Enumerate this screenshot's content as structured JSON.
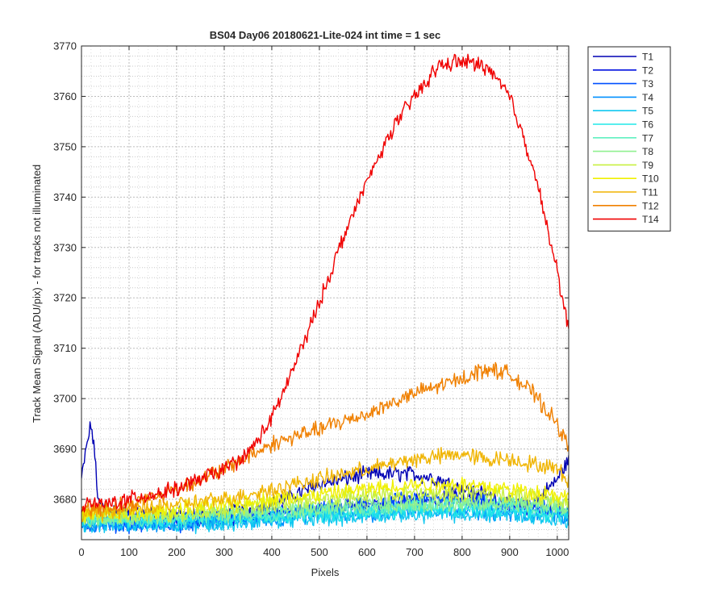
{
  "chart_data": {
    "type": "line",
    "title": "BS04 Day06 20180621-Lite-024 int time = 1 sec",
    "xlabel": "Pixels",
    "ylabel": "Track Mean Signal (ADU/pix) - for tracks not illuminated",
    "xlim": [
      0,
      1024
    ],
    "ylim": [
      3672,
      3770
    ],
    "x_ticks": [
      0,
      100,
      200,
      300,
      400,
      500,
      600,
      700,
      800,
      900,
      1000
    ],
    "y_ticks": [
      3680,
      3690,
      3700,
      3710,
      3720,
      3730,
      3740,
      3750,
      3760,
      3770
    ],
    "grid": true,
    "minor_grid": true,
    "legend_position": "outside-top-right",
    "series": [
      {
        "name": "T1",
        "color": "#0000b4",
        "x": [
          0,
          10,
          20,
          30,
          35,
          100,
          200,
          300,
          400,
          500,
          600,
          650,
          700,
          750,
          800,
          850,
          900,
          950,
          1000,
          1024
        ],
        "y": [
          3684,
          3690,
          3695,
          3687,
          3679,
          3677,
          3677,
          3677,
          3679,
          3683,
          3685,
          3685,
          3685,
          3684,
          3682,
          3681,
          3679,
          3679,
          3684,
          3688
        ]
      },
      {
        "name": "T2",
        "color": "#0010e0",
        "x": [
          0,
          100,
          200,
          300,
          400,
          500,
          600,
          700,
          800,
          900,
          1000,
          1024
        ],
        "y": [
          3676,
          3676,
          3676,
          3676,
          3677,
          3678,
          3679,
          3680,
          3680,
          3679,
          3678,
          3677
        ]
      },
      {
        "name": "T3",
        "color": "#0050ff",
        "x": [
          0,
          100,
          200,
          300,
          400,
          500,
          600,
          700,
          800,
          900,
          1000,
          1024
        ],
        "y": [
          3675,
          3675,
          3675,
          3676,
          3677,
          3678,
          3679,
          3680,
          3680,
          3679,
          3678,
          3677
        ]
      },
      {
        "name": "T4",
        "color": "#0090ff",
        "x": [
          0,
          100,
          200,
          300,
          400,
          500,
          600,
          700,
          800,
          900,
          1000,
          1024
        ],
        "y": [
          3675,
          3675,
          3675,
          3676,
          3676,
          3677,
          3677,
          3678,
          3678,
          3677,
          3677,
          3676
        ]
      },
      {
        "name": "T5",
        "color": "#10c8f0",
        "x": [
          0,
          100,
          200,
          300,
          400,
          500,
          600,
          700,
          800,
          900,
          1000,
          1024
        ],
        "y": [
          3675,
          3675,
          3675,
          3675,
          3676,
          3676,
          3677,
          3677,
          3677,
          3677,
          3676,
          3676
        ]
      },
      {
        "name": "T6",
        "color": "#20e8e8",
        "x": [
          0,
          100,
          200,
          300,
          400,
          500,
          600,
          700,
          800,
          900,
          1000,
          1024
        ],
        "y": [
          3676,
          3676,
          3676,
          3676,
          3677,
          3677,
          3677,
          3678,
          3678,
          3678,
          3677,
          3677
        ]
      },
      {
        "name": "T7",
        "color": "#60f0c0",
        "x": [
          0,
          100,
          200,
          300,
          400,
          500,
          600,
          700,
          800,
          900,
          1000,
          1024
        ],
        "y": [
          3676,
          3676,
          3676,
          3677,
          3677,
          3678,
          3678,
          3679,
          3679,
          3679,
          3678,
          3678
        ]
      },
      {
        "name": "T8",
        "color": "#90f090",
        "x": [
          0,
          100,
          200,
          300,
          400,
          500,
          600,
          700,
          800,
          900,
          1000,
          1024
        ],
        "y": [
          3676,
          3676,
          3677,
          3677,
          3678,
          3678,
          3679,
          3679,
          3679,
          3679,
          3679,
          3678
        ]
      },
      {
        "name": "T9",
        "color": "#c8f040",
        "x": [
          0,
          100,
          200,
          300,
          400,
          500,
          600,
          700,
          800,
          900,
          1000,
          1024
        ],
        "y": [
          3677,
          3677,
          3677,
          3678,
          3679,
          3680,
          3681,
          3681,
          3681,
          3681,
          3680,
          3679
        ]
      },
      {
        "name": "T10",
        "color": "#f0f000",
        "x": [
          0,
          100,
          200,
          300,
          400,
          500,
          600,
          700,
          800,
          900,
          1000,
          1024
        ],
        "y": [
          3677,
          3677,
          3678,
          3679,
          3680,
          3681,
          3682,
          3683,
          3683,
          3682,
          3681,
          3680
        ]
      },
      {
        "name": "T11",
        "color": "#f0b400",
        "x": [
          0,
          100,
          200,
          300,
          400,
          500,
          600,
          700,
          800,
          850,
          900,
          1000,
          1024
        ],
        "y": [
          3677,
          3678,
          3679,
          3680,
          3682,
          3684,
          3686,
          3688,
          3689,
          3688,
          3688,
          3686,
          3684
        ]
      },
      {
        "name": "T12",
        "color": "#f08000",
        "x": [
          0,
          100,
          200,
          300,
          400,
          500,
          600,
          700,
          800,
          850,
          900,
          950,
          1000,
          1024
        ],
        "y": [
          3678,
          3679,
          3682,
          3686,
          3691,
          3694,
          3697,
          3701,
          3704,
          3706,
          3705,
          3701,
          3695,
          3690
        ]
      },
      {
        "name": "T14",
        "color": "#f00000",
        "x": [
          0,
          50,
          100,
          150,
          200,
          250,
          300,
          350,
          400,
          450,
          500,
          550,
          600,
          650,
          700,
          750,
          800,
          850,
          900,
          950,
          1000,
          1024
        ],
        "y": [
          3679,
          3679,
          3680,
          3681,
          3682,
          3684,
          3686,
          3689,
          3696,
          3707,
          3719,
          3732,
          3743,
          3753,
          3760,
          3766,
          3767,
          3766,
          3760,
          3746,
          3725,
          3714
        ]
      }
    ]
  }
}
